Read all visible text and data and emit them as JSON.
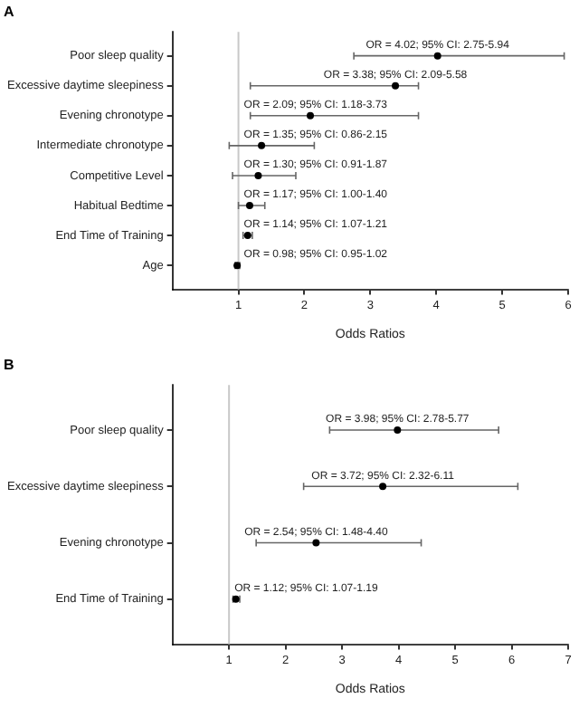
{
  "chart_data": [
    {
      "type": "scatter",
      "orientation": "horizontal",
      "title": "A",
      "xlabel": "Odds Ratios",
      "categories": [
        "Poor sleep quality",
        "Excessive daytime sleepiness",
        "Evening chronotype",
        "Intermediate chronotype",
        "Competitive Level",
        "Habitual Bedtime",
        "End Time of Training",
        "Age"
      ],
      "values": [
        4.02,
        3.38,
        2.09,
        1.35,
        1.3,
        1.17,
        1.14,
        0.98
      ],
      "errors": [
        [
          2.75,
          5.94
        ],
        [
          1.18,
          3.73
        ],
        [
          1.18,
          3.73
        ],
        [
          0.86,
          2.15
        ],
        [
          0.91,
          1.87
        ],
        [
          1.0,
          1.4
        ],
        [
          1.07,
          1.21
        ],
        [
          0.95,
          1.02
        ]
      ],
      "color": "#000000",
      "marker": "circle",
      "xlim": [
        0,
        6
      ],
      "xticks": [
        1,
        2,
        3,
        4,
        5,
        6
      ],
      "ref_lines": [
        {
          "axis": "x",
          "value": 1,
          "color": "#c8c8c8"
        }
      ],
      "annotations": [
        {
          "text": "OR = 4.02; 95% CI: 2.75-5.94",
          "x": 4.02,
          "y": "Poor sleep quality"
        },
        {
          "text": "OR = 3.38; 95% CI: 2.09-5.58",
          "x": 3.38,
          "y": "Excessive daytime sleepiness"
        },
        {
          "text": "OR = 2.09; 95% CI: 1.18-3.73",
          "x": 2.09,
          "y": "Evening chronotype"
        },
        {
          "text": "OR = 1.35; 95% CI: 0.86-2.15",
          "x": 1.35,
          "y": "Intermediate chronotype"
        },
        {
          "text": "OR = 1.30; 95% CI: 0.91-1.87",
          "x": 1.3,
          "y": "Competitive Level"
        },
        {
          "text": "OR = 1.17; 95% CI: 1.00-1.40",
          "x": 1.17,
          "y": "Habitual Bedtime"
        },
        {
          "text": "OR = 1.14; 95% CI: 1.07-1.21",
          "x": 1.14,
          "y": "End Time of Training"
        },
        {
          "text": "OR = 0.98; 95% CI: 0.95-1.02",
          "x": 0.98,
          "y": "Age"
        }
      ],
      "grid": false,
      "legend": false
    },
    {
      "type": "scatter",
      "orientation": "horizontal",
      "title": "B",
      "xlabel": "Odds Ratios",
      "categories": [
        "Poor sleep quality",
        "Excessive daytime sleepiness",
        "Evening chronotype",
        "End Time of Training"
      ],
      "values": [
        3.98,
        3.72,
        2.54,
        1.12
      ],
      "errors": [
        [
          2.78,
          5.77
        ],
        [
          2.32,
          6.11
        ],
        [
          1.48,
          4.4
        ],
        [
          1.07,
          1.19
        ]
      ],
      "color": "#000000",
      "marker": "circle",
      "xlim": [
        0,
        7
      ],
      "xticks": [
        1,
        2,
        3,
        4,
        5,
        6,
        7
      ],
      "ref_lines": [
        {
          "axis": "x",
          "value": 1,
          "color": "#c8c8c8"
        }
      ],
      "annotations": [
        {
          "text": "OR = 3.98; 95% CI: 2.78-5.77",
          "x": 3.98,
          "y": "Poor sleep quality"
        },
        {
          "text": "OR = 3.72; 95% CI: 2.32-6.11",
          "x": 3.72,
          "y": "Excessive daytime sleepiness"
        },
        {
          "text": "OR = 2.54; 95% CI: 1.48-4.40",
          "x": 2.54,
          "y": "Evening chronotype"
        },
        {
          "text": "OR = 1.12; 95% CI: 1.07-1.19",
          "x": 1.12,
          "y": "End Time of Training"
        }
      ],
      "grid": false,
      "legend": false
    }
  ]
}
